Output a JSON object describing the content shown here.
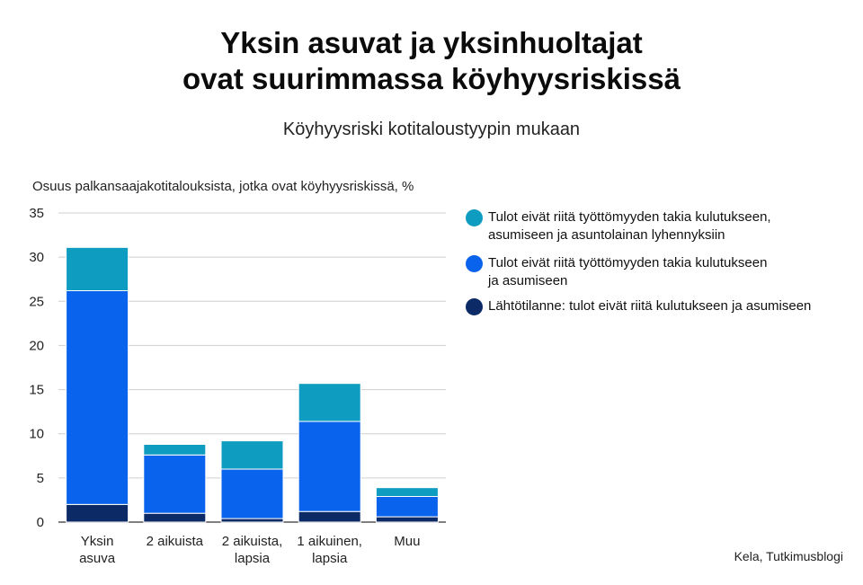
{
  "title_lines": [
    "Yksin asuvat ja yksinhuoltajat",
    "ovat suurimmassa köyhyysriskissä"
  ],
  "subtitle": "Köyhyysriski kotitaloustyypin mukaan",
  "source": "Kela, Tutkimusblogi",
  "chart_data": {
    "type": "bar",
    "stacked": true,
    "ylabel": "Osuus palkansaajakotitalouksista, jotka ovat köyhyysriskissä, %",
    "ylim": [
      0,
      35
    ],
    "yticks": [
      0,
      5,
      10,
      15,
      20,
      25,
      30,
      35
    ],
    "grid": true,
    "legend_position": "right",
    "categories": [
      "Yksin\nasuva",
      "2 aikuista",
      "2 aikuista,\nlapsia",
      "1 aikuinen,\nlapsia",
      "Muu"
    ],
    "series": [
      {
        "name": "Lähtötilanne: tulot eivät riitä kulutukseen ja asumiseen",
        "color": "#0b2a66",
        "values": [
          2.0,
          1.0,
          0.4,
          1.2,
          0.6
        ]
      },
      {
        "name": "Tulot eivät riitä työttömyyden takia kulutukseen ja asumiseen",
        "color": "#0a63ec",
        "values": [
          24.2,
          6.6,
          5.6,
          10.2,
          2.3
        ]
      },
      {
        "name": "Tulot eivät riitä työttömyyden takia kulutukseen, asumiseen ja asuntolainan lyhennyksiin",
        "color": "#0e9cc0",
        "values": [
          4.9,
          1.2,
          3.2,
          4.3,
          1.0
        ]
      }
    ],
    "legend_order": [
      2,
      1,
      0
    ]
  }
}
